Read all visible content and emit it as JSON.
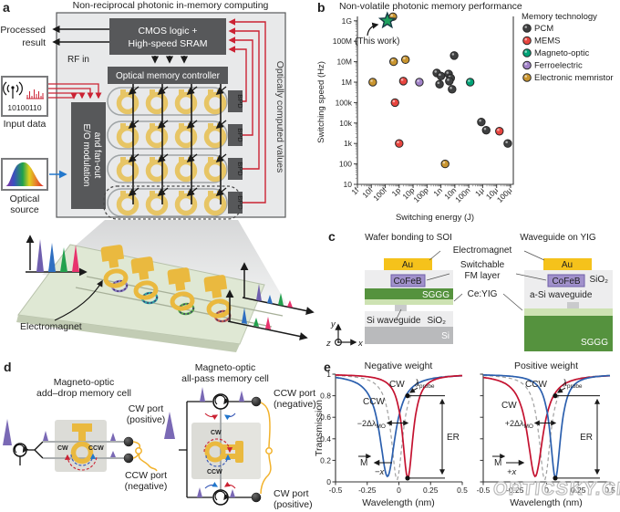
{
  "figure": {
    "watermark": "OPTICSKY.CN"
  },
  "colors": {
    "accent_red": "#cb2233",
    "gold": "#eab93f",
    "dark_gray": "#58595a",
    "cw_red": "#c41230",
    "ccw_blue": "#2b5fae",
    "star_green": "#1fa15e"
  },
  "panel_a": {
    "label": "a",
    "title": "Non-reciprocal photonic in-memory computing",
    "processed_line1": "Processed",
    "processed_line2": "result",
    "rf_in": "RF in",
    "input_bits": "10100110",
    "input_data": "Input data",
    "optical_line1": "Optical",
    "optical_line2": "source",
    "cmos_line1": "CMOS logic +",
    "cmos_line2": "High-speed SRAM",
    "controller": "Optical memory controller",
    "eo_line1": "E/O modulation",
    "eo_line2": "and fan-out",
    "bpd": "BPD",
    "computed_values": "Optically computed values",
    "electromagnet": "Electromagnet"
  },
  "panel_b": {
    "label": "b",
    "this_work": "(This work)"
  },
  "panel_c": {
    "label": "c",
    "left_title": "Wafer bonding to SOI",
    "right_title": "Waveguide on YIG",
    "electromagnet": "Electromagnet",
    "switchable_line1": "Switchable",
    "switchable_line2": "FM layer",
    "ce_yig": "Ce:YIG",
    "au": "Au",
    "cofeb": "CoFeB",
    "sggg": "SGGG",
    "sio2": "SiO₂",
    "si": "Si",
    "si_waveguide": "Si waveguide",
    "asi_waveguide": "a-Si waveguide",
    "axis_x": "x",
    "axis_y": "y",
    "axis_z": "z"
  },
  "panel_d": {
    "label": "d",
    "left_title_line1": "Magneto-optic",
    "left_title_line2": "add–drop memory cell",
    "right_title_line1": "Magneto-optic",
    "right_title_line2": "all-pass memory cell",
    "cw": "CW",
    "ccw": "CCW",
    "cw_port": "CW port",
    "positive": "(positive)",
    "ccw_port": "CCW port",
    "negative": "(negative)"
  },
  "panel_e": {
    "label": "e",
    "cw": "CW",
    "ccw": "CCW",
    "lambda": "λ",
    "probe": "probe",
    "er": "ER",
    "m": "M",
    "minus_x": "−x",
    "plus_x": "+x",
    "shift_neg": "−2Δλ",
    "shift_pos": "+2Δλ",
    "mo": "MO"
  },
  "chart_data": [
    {
      "type": "scatter",
      "title": "Non-volatile photonic memory performance",
      "xlabel": "Switching energy (J)",
      "ylabel": "Switching speed (Hz)",
      "x_scale": "log",
      "y_scale": "log",
      "x_ticks": {
        "labels": [
          "1f",
          "10f",
          "100f",
          "1p",
          "10p",
          "100p",
          "1n",
          "10n",
          "100n",
          "1μ",
          "10μ",
          "100μ"
        ],
        "exponents": [
          -15,
          -14,
          -13,
          -12,
          -11,
          -10,
          -9,
          -8,
          -7,
          -6,
          -5,
          -4
        ]
      },
      "y_ticks": {
        "labels": [
          "10",
          "100",
          "1k",
          "10k",
          "100k",
          "1M",
          "10M",
          "100M",
          "1G"
        ],
        "exponents": [
          1,
          2,
          3,
          4,
          5,
          6,
          7,
          8,
          9
        ]
      },
      "xlim_exponents": [
        -15,
        -4
      ],
      "ylim_exponents": [
        1,
        9.3
      ],
      "legend_title": "Memory technology",
      "series": [
        {
          "name": "PCM",
          "color": "#3f4041",
          "log_points": [
            [
              -9.3,
              6.45
            ],
            [
              -9.0,
              6.3
            ],
            [
              -9.1,
              5.9
            ],
            [
              -8.45,
              6.4
            ],
            [
              -8.3,
              6.2
            ],
            [
              -8.4,
              6.05
            ],
            [
              -8.05,
              7.3
            ],
            [
              -8.2,
              5.65
            ],
            [
              -6.1,
              4.05
            ],
            [
              -5.75,
              3.65
            ],
            [
              -4.2,
              3.0
            ]
          ]
        },
        {
          "name": "MEMS",
          "color": "#e8453f",
          "log_points": [
            [
              -12.3,
              5.0
            ],
            [
              -11.7,
              6.05
            ],
            [
              -12.0,
              3.0
            ],
            [
              -4.8,
              3.6
            ]
          ]
        },
        {
          "name": "Magneto-optic",
          "color": "#00a377",
          "log_points": [
            [
              -6.9,
              6.0
            ]
          ]
        },
        {
          "name": "Ferroelectric",
          "color": "#a182c8",
          "log_points": [
            [
              -10.55,
              6.0
            ]
          ]
        },
        {
          "name": "Electronic memristor",
          "color": "#c9952f",
          "log_points": [
            [
              -13.9,
              6.0
            ],
            [
              -12.4,
              7.0
            ],
            [
              -11.55,
              7.1
            ],
            [
              -8.7,
              2.0
            ],
            [
              -12.45,
              9.2
            ]
          ]
        }
      ],
      "highlight": {
        "name": "(This work)",
        "marker": "star",
        "color": "#1fa15e",
        "log_point": [
          -12.85,
          9.0
        ]
      }
    },
    {
      "type": "line",
      "title": "Negative weight",
      "xlabel": "Wavelength (nm)",
      "ylabel": "Transmission",
      "xlim": [
        -0.5,
        0.5
      ],
      "ylim": [
        0,
        1
      ],
      "x_ticks": [
        -0.5,
        -0.25,
        0,
        0.25,
        0.5
      ],
      "y_ticks": [
        0,
        0.2,
        0.4,
        0.6,
        0.8,
        1
      ],
      "curves": [
        {
          "name": "initial",
          "style": "dashed",
          "color": "#a0a0a0",
          "center": -0.015,
          "min": 0.02,
          "gamma": 0.055
        },
        {
          "name": "CCW",
          "color": "#2b5fae",
          "center": -0.09,
          "min": 0.05,
          "gamma": 0.075
        },
        {
          "name": "CW",
          "color": "#c41230",
          "center": 0.07,
          "min": 0.035,
          "gamma": 0.05
        }
      ],
      "annotations": {
        "probe_x": 0.07,
        "er_high": 0.8,
        "er_low": 0.035,
        "shift": "−2Δλ_MO",
        "field": "−x"
      }
    },
    {
      "type": "line",
      "title": "Positive weight",
      "xlabel": "Wavelength (nm)",
      "ylabel": "Transmission",
      "xlim": [
        -0.5,
        0.5
      ],
      "ylim": [
        0,
        1
      ],
      "x_ticks": [
        -0.5,
        -0.25,
        0,
        0.25,
        0.5
      ],
      "y_ticks": [
        0,
        0.2,
        0.4,
        0.6,
        0.8,
        1
      ],
      "curves": [
        {
          "name": "initial",
          "style": "dashed",
          "color": "#a0a0a0",
          "center": -0.015,
          "min": 0.02,
          "gamma": 0.055
        },
        {
          "name": "CW",
          "color": "#c41230",
          "center": -0.09,
          "min": 0.05,
          "gamma": 0.075
        },
        {
          "name": "CCW",
          "color": "#2b5fae",
          "center": 0.07,
          "min": 0.035,
          "gamma": 0.05
        }
      ],
      "annotations": {
        "probe_x": 0.07,
        "er_high": 0.8,
        "er_low": 0.035,
        "shift": "+2Δλ_MO",
        "field": "+x"
      }
    }
  ]
}
